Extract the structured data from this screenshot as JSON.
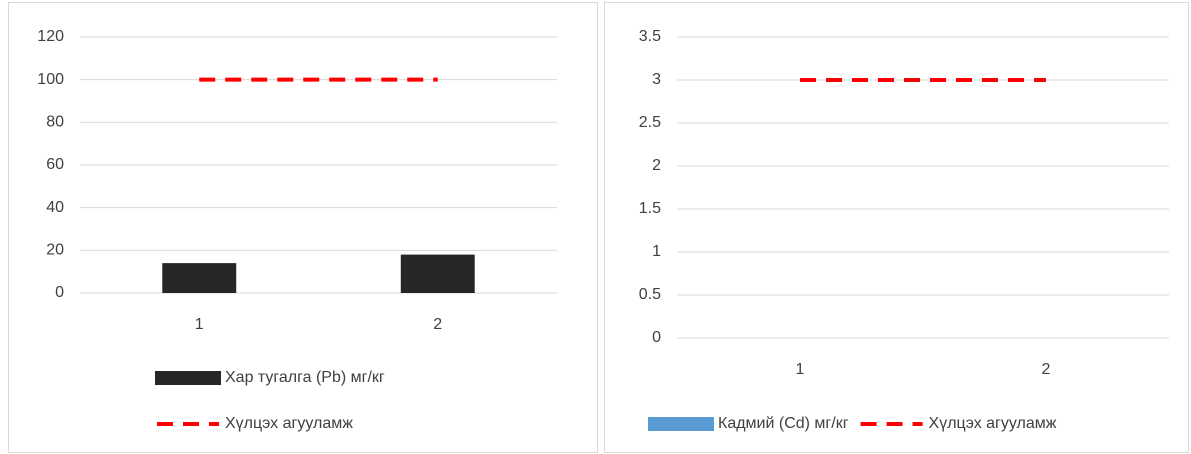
{
  "chart_data": [
    {
      "type": "bar",
      "categories": [
        "1",
        "2"
      ],
      "series": [
        {
          "name": "Хар тугалга (Pb) мг/кг",
          "color": "#262626",
          "values": [
            14,
            18
          ]
        },
        {
          "name": "Хүлцэх агууламж",
          "color": "#ff0000",
          "type": "line",
          "dash": true,
          "values": [
            100,
            100
          ]
        }
      ],
      "ylim": [
        0,
        120
      ],
      "yticks": [
        0,
        20,
        40,
        60,
        80,
        100,
        120
      ],
      "grid": true
    },
    {
      "type": "bar",
      "categories": [
        "1",
        "2"
      ],
      "series": [
        {
          "name": "Кадмий (Cd) мг/кг",
          "color": "#5b9bd5",
          "values": [
            0,
            0
          ]
        },
        {
          "name": "Хүлцэх агууламж",
          "color": "#ff0000",
          "type": "line",
          "dash": true,
          "values": [
            3,
            3
          ]
        }
      ],
      "ylim": [
        0,
        3.5
      ],
      "yticks": [
        0,
        0.5,
        1,
        1.5,
        2,
        2.5,
        3,
        3.5
      ],
      "grid": true
    }
  ]
}
